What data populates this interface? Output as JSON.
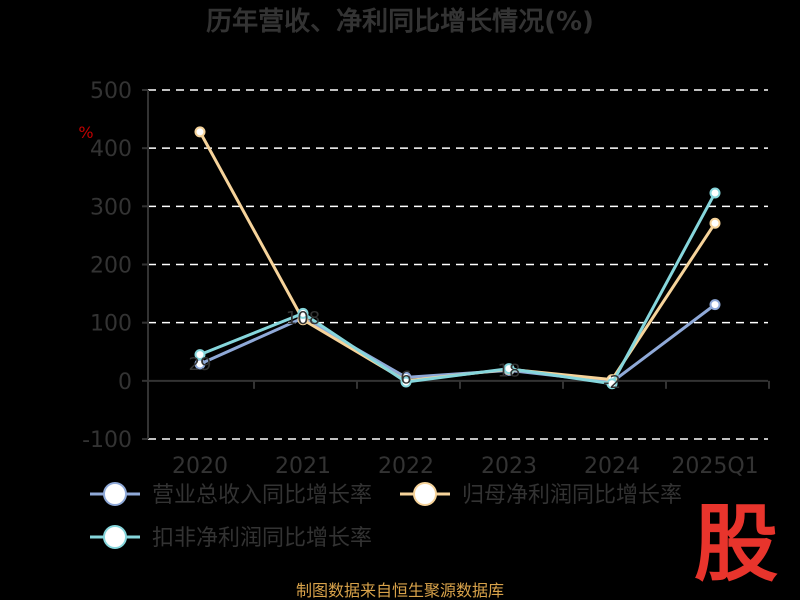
{
  "chart_data": {
    "type": "line",
    "title": "历年营收、净利同比增长情况(%)",
    "ylabel": "%",
    "categories": [
      "2020",
      "2021",
      "2022",
      "2023",
      "2024",
      "2025Q1"
    ],
    "ylim": [
      -100,
      500
    ],
    "yticks": [
      -100,
      0,
      100,
      200,
      300,
      400,
      500
    ],
    "grid": true,
    "legend_position": "bottom",
    "series": [
      {
        "name": "营业总收入同比增长率",
        "color": "#8fa9d8",
        "values": [
          29,
          108,
          6,
          18,
          -2,
          131
        ]
      },
      {
        "name": "归母净利润同比增长率",
        "color": "#f6d39a",
        "values": [
          428,
          105,
          0,
          20,
          2,
          271
        ]
      },
      {
        "name": "扣非净利润同比增长率",
        "color": "#86d6dc",
        "values": [
          45,
          116,
          -2,
          21,
          -5,
          323
        ]
      }
    ],
    "labels": [
      "29",
      "108",
      "6",
      "18",
      "-2"
    ]
  },
  "source": "制图数据来自恒生聚源数据库",
  "logo_text": "股"
}
